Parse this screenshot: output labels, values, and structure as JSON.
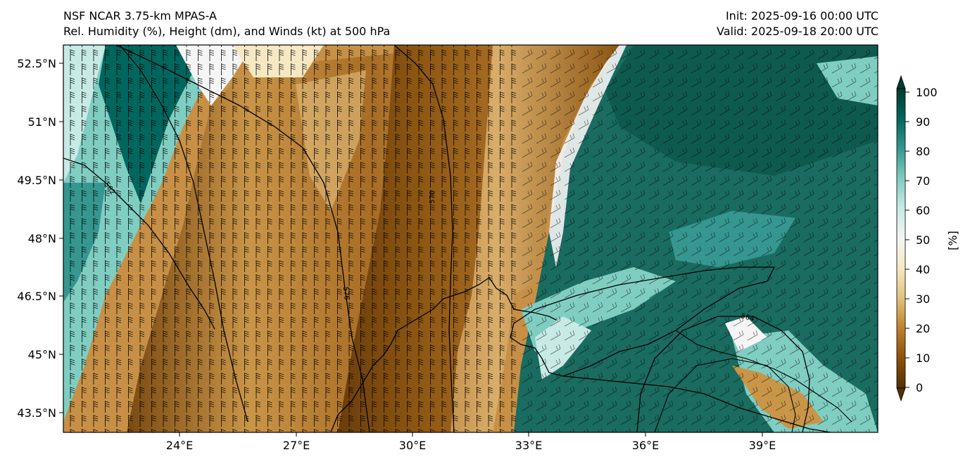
{
  "titles": {
    "model": "NSF NCAR 3.75-km MPAS-A",
    "fields": "Rel. Humidity (%), Height (dm), and Winds (kt) at 500 hPa",
    "init": "Init: 2025-09-16 00:00 UTC",
    "valid": "Valid: 2025-09-18 20:00 UTC"
  },
  "axes": {
    "lat_ticks": [
      "52.5°N",
      "51°N",
      "49.5°N",
      "48°N",
      "46.5°N",
      "45°N",
      "43.5°N"
    ],
    "lon_ticks": [
      "24°E",
      "27°E",
      "30°E",
      "33°E",
      "36°E",
      "39°E"
    ]
  },
  "colorbar": {
    "label": "[%]",
    "ticks": [
      "0",
      "10",
      "20",
      "30",
      "40",
      "50",
      "60",
      "70",
      "80",
      "90",
      "100"
    ],
    "colors": [
      "#543005",
      "#8c510a",
      "#bf812d",
      "#dfc27d",
      "#f6e8c3",
      "#f5f5f5",
      "#c7eae5",
      "#80cdc1",
      "#35978f",
      "#01665e",
      "#003c30"
    ]
  },
  "contours": {
    "labels": [
      "582",
      "576",
      "570",
      "564"
    ]
  }
}
